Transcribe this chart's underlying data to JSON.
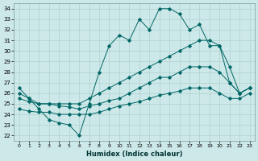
{
  "xlabel": "Humidex (Indice chaleur)",
  "xlim": [
    -0.5,
    23.5
  ],
  "ylim": [
    21.5,
    34.5
  ],
  "xticks": [
    0,
    1,
    2,
    3,
    4,
    5,
    6,
    7,
    8,
    9,
    10,
    11,
    12,
    13,
    14,
    15,
    16,
    17,
    18,
    19,
    20,
    21,
    22,
    23
  ],
  "yticks": [
    22,
    23,
    24,
    25,
    26,
    27,
    28,
    29,
    30,
    31,
    32,
    33,
    34
  ],
  "bg_color": "#cde8e8",
  "grid_color": "#b0d0d0",
  "line_color": "#006666",
  "lines": [
    {
      "x": [
        0,
        1,
        2,
        3,
        4,
        5,
        6,
        7,
        8,
        9,
        10,
        11,
        12,
        13,
        14,
        15,
        16,
        17,
        18,
        19,
        20,
        21,
        22,
        23
      ],
      "y": [
        26.5,
        25.5,
        24.5,
        23.5,
        23.2,
        23.0,
        22.0,
        25.0,
        28.0,
        30.5,
        31.5,
        31.0,
        33.0,
        32.0,
        34.0,
        34.0,
        33.5,
        32.0,
        32.5,
        30.5,
        30.5,
        27.0,
        26.0,
        26.5
      ]
    },
    {
      "x": [
        0,
        1,
        2,
        3,
        4,
        5,
        6,
        7,
        8,
        9,
        10,
        11,
        12,
        13,
        14,
        15,
        16,
        17,
        18,
        19,
        20,
        21,
        22,
        23
      ],
      "y": [
        26.0,
        25.5,
        25.0,
        25.0,
        25.0,
        25.0,
        25.0,
        25.5,
        26.0,
        26.5,
        27.0,
        27.5,
        28.0,
        28.5,
        29.0,
        29.5,
        30.0,
        30.5,
        31.0,
        31.0,
        30.5,
        28.5,
        26.0,
        26.5
      ]
    },
    {
      "x": [
        0,
        1,
        2,
        3,
        4,
        5,
        6,
        7,
        8,
        9,
        10,
        11,
        12,
        13,
        14,
        15,
        16,
        17,
        18,
        19,
        20,
        21,
        22,
        23
      ],
      "y": [
        25.5,
        25.2,
        25.0,
        25.0,
        24.8,
        24.7,
        24.5,
        24.8,
        25.0,
        25.3,
        25.5,
        26.0,
        26.5,
        27.0,
        27.5,
        27.5,
        28.0,
        28.5,
        28.5,
        28.5,
        28.0,
        27.0,
        26.0,
        26.5
      ]
    },
    {
      "x": [
        0,
        1,
        2,
        3,
        4,
        5,
        6,
        7,
        8,
        9,
        10,
        11,
        12,
        13,
        14,
        15,
        16,
        17,
        18,
        19,
        20,
        21,
        22,
        23
      ],
      "y": [
        24.5,
        24.3,
        24.2,
        24.2,
        24.0,
        24.0,
        24.0,
        24.0,
        24.2,
        24.5,
        24.8,
        25.0,
        25.2,
        25.5,
        25.8,
        26.0,
        26.2,
        26.5,
        26.5,
        26.5,
        26.0,
        25.5,
        25.5,
        26.0
      ]
    }
  ]
}
